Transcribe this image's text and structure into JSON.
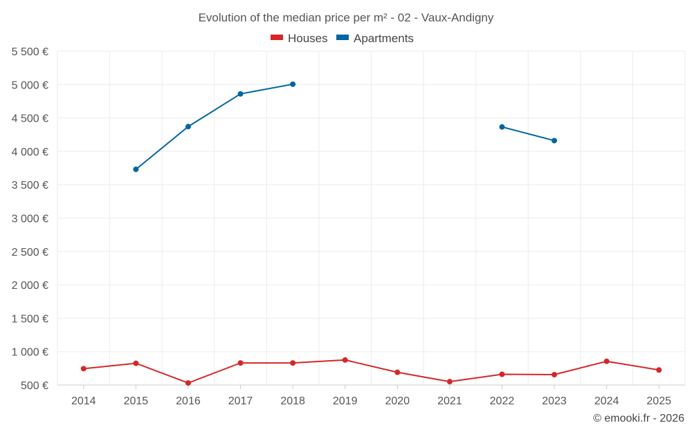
{
  "chart_data": {
    "type": "line",
    "title": "Evolution of the median price per m² - 02 - Vaux-Andigny",
    "categories": [
      "2014",
      "2015",
      "2016",
      "2017",
      "2018",
      "2019",
      "2020",
      "2021",
      "2022",
      "2023",
      "2024",
      "2025"
    ],
    "ylim": [
      500,
      5500
    ],
    "yticks": [
      500,
      1000,
      1500,
      2000,
      2500,
      3000,
      3500,
      4000,
      4500,
      5000,
      5500
    ],
    "ytick_labels": [
      "500 €",
      "1 000 €",
      "1 500 €",
      "2 000 €",
      "2 500 €",
      "3 000 €",
      "3 500 €",
      "4 000 €",
      "4 500 €",
      "5 000 €",
      "5 500 €"
    ],
    "grid": true,
    "legend_position": "top-center",
    "series": [
      {
        "name": "Houses",
        "color": "#d62728",
        "values": [
          745,
          825,
          530,
          830,
          830,
          875,
          690,
          550,
          660,
          655,
          855,
          725
        ]
      },
      {
        "name": "Apartments",
        "color": "#0066a1",
        "values": [
          null,
          3730,
          4370,
          4860,
          5005,
          null,
          null,
          null,
          4365,
          4160,
          null,
          null
        ]
      }
    ],
    "credit": "© emooki.fr - 2026"
  }
}
